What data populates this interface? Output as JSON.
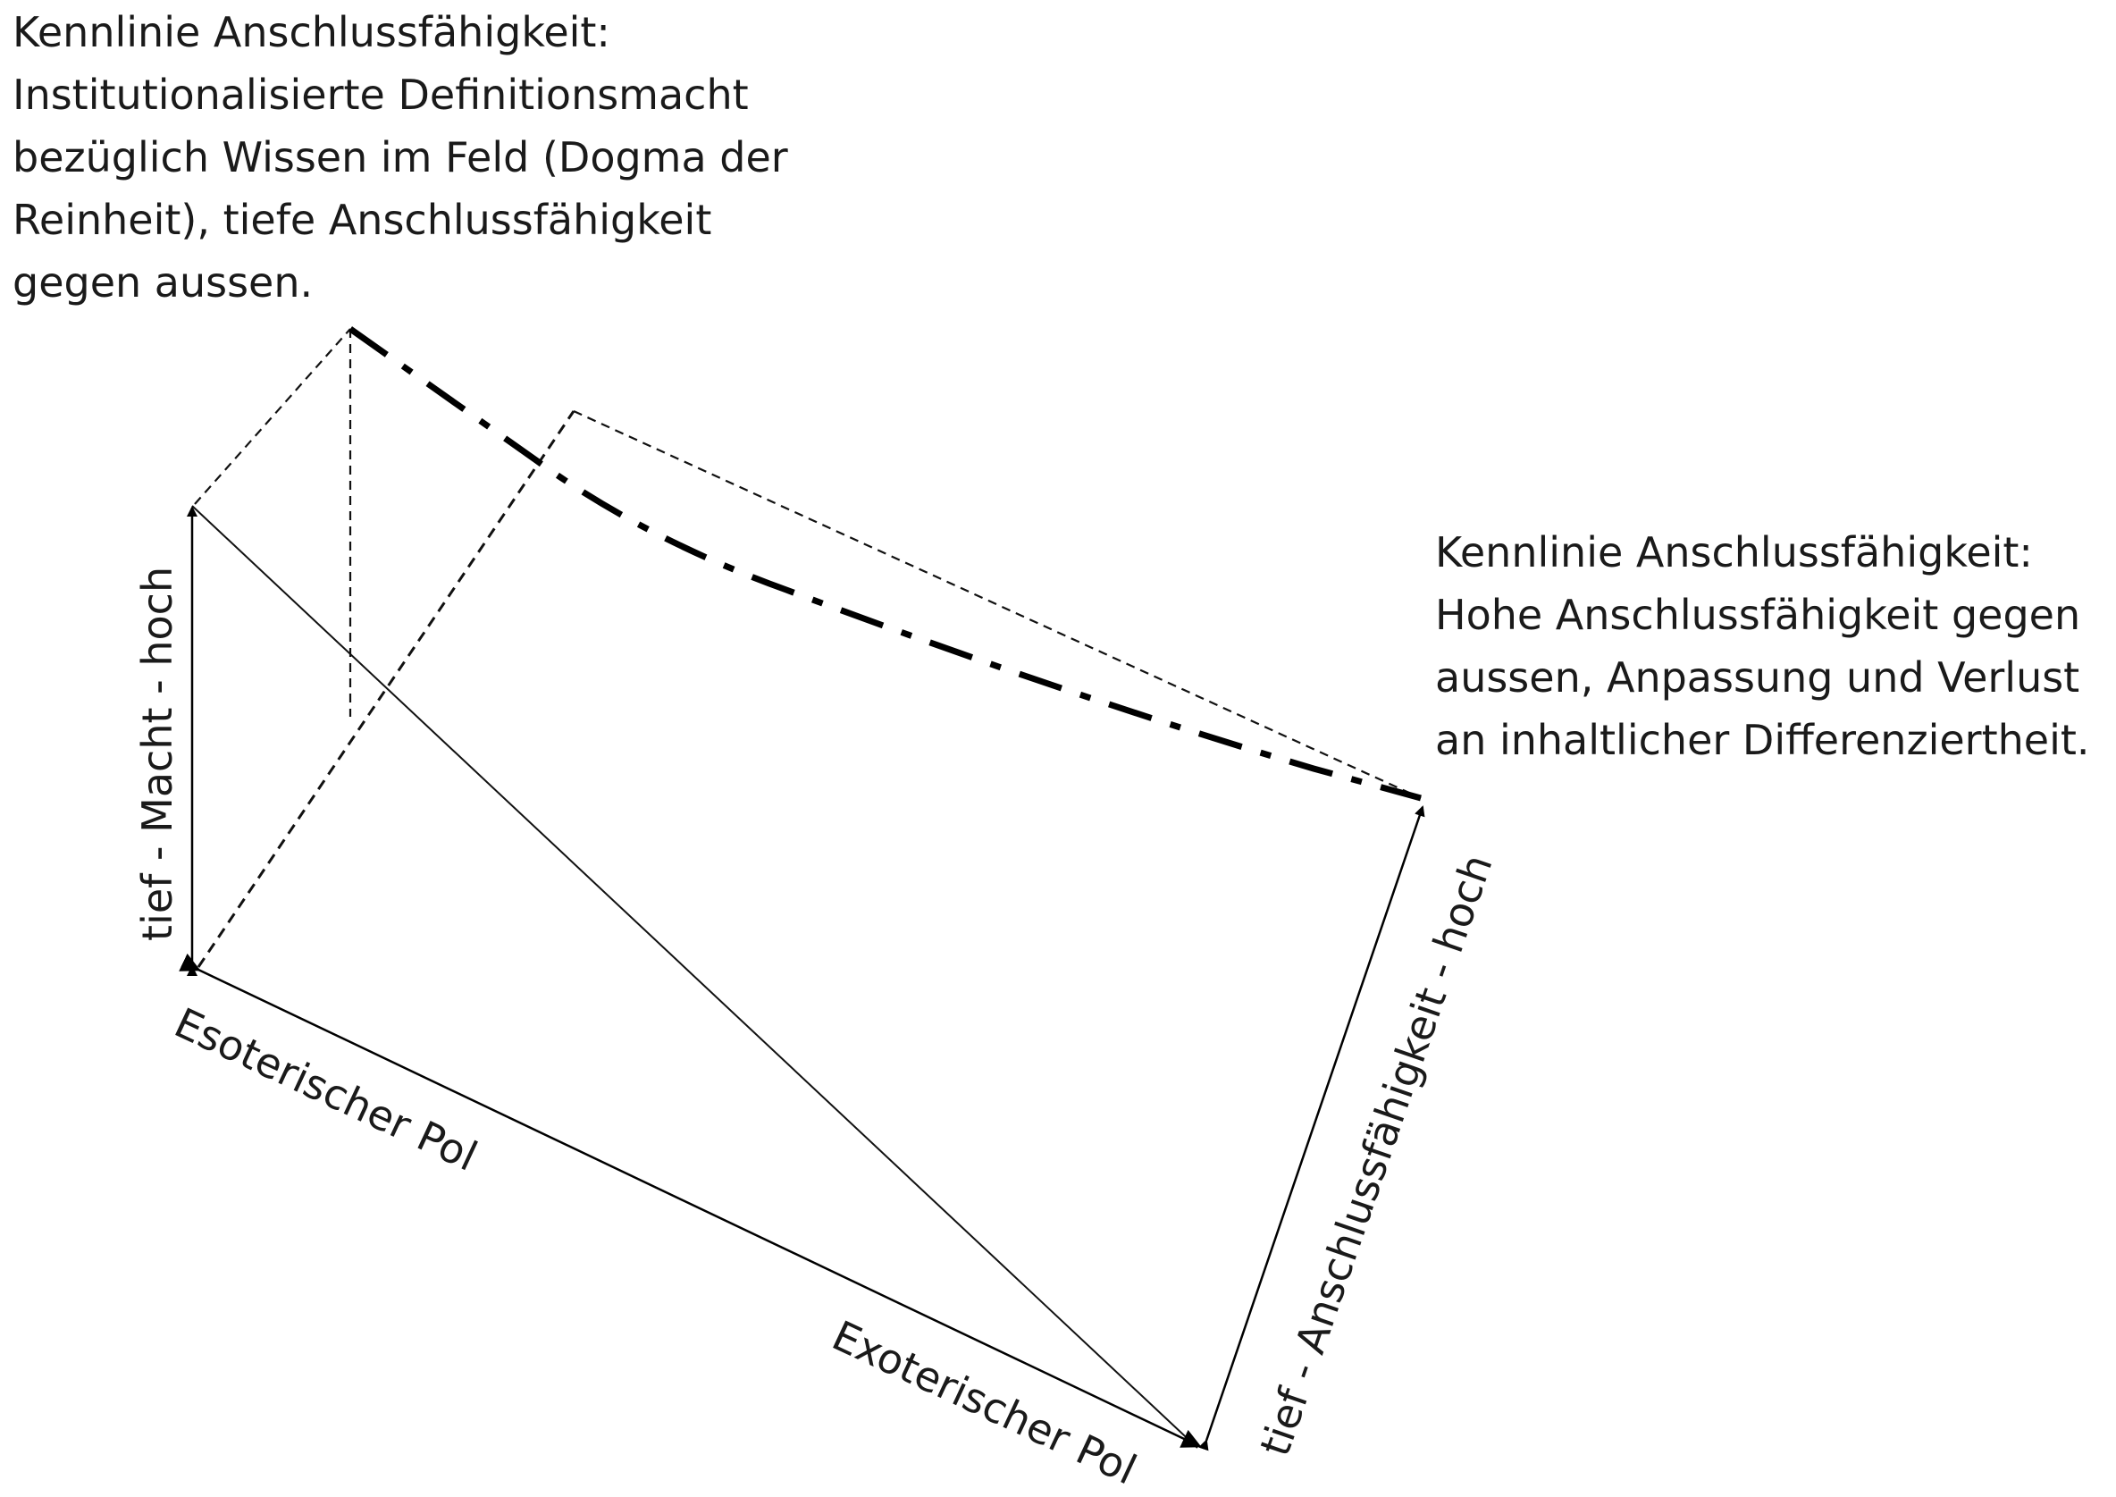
{
  "annotations": {
    "top_left": [
      "Kennlinie Anschlussfähigkeit:",
      "Institutionalisierte Definitionsmacht",
      "bezüglich Wissen im Feld (Dogma der",
      "Reinheit), tiefe Anschlussfähigkeit",
      "gegen aussen."
    ],
    "right": [
      "Kennlinie Anschlussfähigkeit:",
      "Hohe Anschlussfähigkeit gegen",
      "aussen, Anpassung und Verlust",
      "an inhaltlicher Differenziertheit."
    ]
  },
  "axes": {
    "macht": "tief - Macht - hoch",
    "anschluss": "tief - Anschlussfähigkeit - hoch",
    "esoterisch": "Esoterischer Pol",
    "exoterisch": "Exoterischer Pol"
  }
}
